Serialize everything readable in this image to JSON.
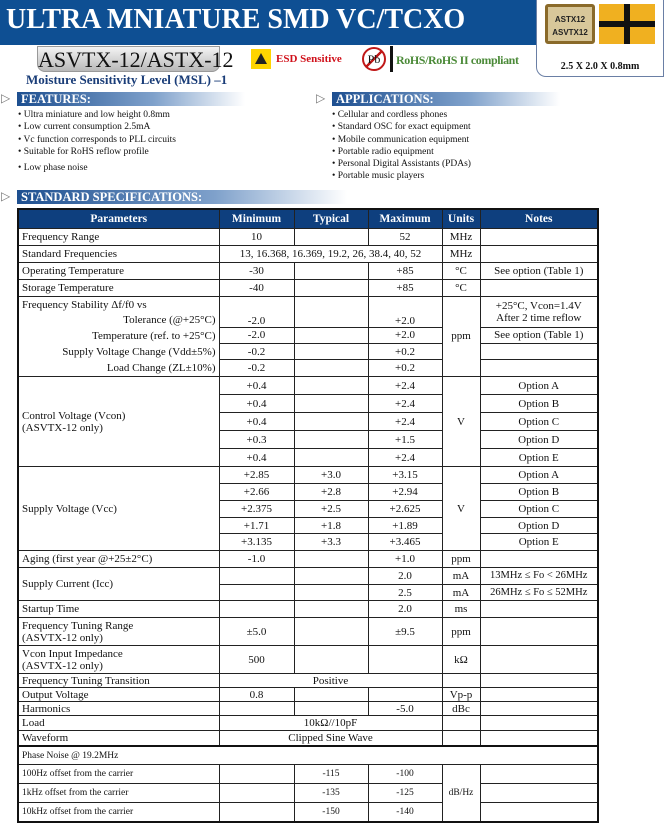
{
  "header": {
    "title": "ULTRA MNIATURE SMD VC/TCXO",
    "model": "ASVTX-12/ASTX-12",
    "esd_label": "ESD Sensitive",
    "pb_label": "Pb",
    "rohs_label": "RoHS/RoHS II compliant",
    "msl": "Moisture Sensitivity Level (MSL) –1",
    "chip_text": [
      "ASTX12",
      "ASVTX12"
    ],
    "dimensions": "2.5 X 2.0 X 0.8mm",
    "brand_color": "#0e4f93"
  },
  "features": {
    "title": "FEATURES:",
    "items": [
      "Ultra miniature and low height 0.8mm",
      "Low current consumption 2.5mA",
      "Vc function corresponds to PLL circuits",
      "Suitable for RoHS reflow profile",
      "Low phase noise"
    ]
  },
  "applications": {
    "title": "APPLICATIONS:",
    "items": [
      "Cellular and cordless phones",
      "Standard OSC for exact equipment",
      "Mobile communication equipment",
      "Portable  radio equipment",
      "Personal Digital Assistants (PDAs)",
      "Portable music players"
    ]
  },
  "specs": {
    "title": "STANDARD SPECIFICATIONS:",
    "headers": [
      "Parameters",
      "Minimum",
      "Typical",
      "Maximum",
      "Units",
      "Notes"
    ],
    "freq_range": [
      "Frequency Range",
      "10",
      "",
      "52",
      "MHz",
      ""
    ],
    "std_freq": [
      "Standard Frequencies",
      "13, 16.368, 16.369, 19.2, 26, 38.4, 40, 52",
      "MHz",
      ""
    ],
    "op_temp": [
      "Operating Temperature",
      "-30",
      "",
      "+85",
      "°C",
      "See option (Table 1)"
    ],
    "storage": [
      "Storage Temperature",
      "-40",
      "",
      "+85",
      "°C",
      ""
    ],
    "stability": {
      "title": "Frequency Stability Δf/f0 vs",
      "unit": "ppm",
      "rows": [
        [
          "Tolerance (@+25°C)",
          "-2.0",
          "",
          "+2.0",
          "+25°C, Vcon=1.4V After 2 time reflow"
        ],
        [
          "Temperature (ref. to +25°C)",
          "-2.0",
          "",
          "+2.0",
          "See option (Table 1)"
        ],
        [
          "Supply Voltage Change (Vdd±5%)",
          "-0.2",
          "",
          "+0.2",
          ""
        ],
        [
          "Load Change (ZL±10%)",
          "-0.2",
          "",
          "+0.2",
          ""
        ]
      ]
    },
    "control_voltage": {
      "label": "Control Voltage (Vcon)",
      "sub": "(ASVTX-12 only)",
      "unit": "V",
      "rows": [
        [
          "+0.4",
          "",
          "+2.4",
          "Option A"
        ],
        [
          "+0.4",
          "",
          "+2.4",
          "Option B"
        ],
        [
          "+0.4",
          "",
          "+2.4",
          "Option C"
        ],
        [
          "+0.3",
          "",
          "+1.5",
          "Option D"
        ],
        [
          "+0.4",
          "",
          "+2.4",
          "Option E"
        ]
      ]
    },
    "supply_voltage": {
      "label": "Supply Voltage (Vcc)",
      "unit": "V",
      "rows": [
        [
          "+2.85",
          "+3.0",
          "+3.15",
          "Option A"
        ],
        [
          "+2.66",
          "+2.8",
          "+2.94",
          "Option B"
        ],
        [
          "+2.375",
          "+2.5",
          "+2.625",
          "Option C"
        ],
        [
          "+1.71",
          "+1.8",
          "+1.89",
          "Option D"
        ],
        [
          "+3.135",
          "+3.3",
          "+3.465",
          "Option E"
        ]
      ]
    },
    "aging": [
      "Aging (first year @+25±2°C)",
      "-1.0",
      "",
      "+1.0",
      "ppm",
      ""
    ],
    "supply_current": {
      "label": "Supply Current (Icc)",
      "rows": [
        [
          "",
          "",
          "2.0",
          "mA",
          "13MHz ≤ Fo < 26MHz"
        ],
        [
          "",
          "",
          "2.5",
          "mA",
          "26MHz ≤ Fo ≤ 52MHz"
        ]
      ]
    },
    "startup": [
      "Startup Time",
      "",
      "",
      "2.0",
      "ms",
      ""
    ],
    "ftr": [
      "Frequency Tuning Range",
      "(ASVTX-12 only)",
      "±5.0",
      "",
      "±9.5",
      "ppm",
      ""
    ],
    "vcon_z": [
      "Vcon Input Impedance",
      "(ASVTX-12 only)",
      "500",
      "",
      "",
      "kΩ",
      ""
    ],
    "ftt": [
      "Frequency Tuning Transition",
      "Positive",
      "",
      ""
    ],
    "output": [
      "Output Voltage",
      "0.8",
      "",
      "",
      "Vp-p",
      ""
    ],
    "harmonics": [
      "Harmonics",
      "",
      "",
      "-5.0",
      "dBc",
      ""
    ],
    "load": [
      "Load",
      "10kΩ//10pF",
      "",
      ""
    ],
    "waveform": [
      "Waveform",
      "Clipped Sine Wave",
      "",
      ""
    ],
    "phase_noise": {
      "title": "Phase Noise @ 19.2MHz",
      "unit": "dB/Hz",
      "rows": [
        [
          "100Hz offset from the carrier",
          "",
          "-115",
          "-100",
          ""
        ],
        [
          "1kHz offset from the carrier",
          "",
          "-135",
          "-125",
          ""
        ],
        [
          "10kHz offset from the carrier",
          "",
          "-150",
          "-140",
          ""
        ]
      ]
    }
  }
}
